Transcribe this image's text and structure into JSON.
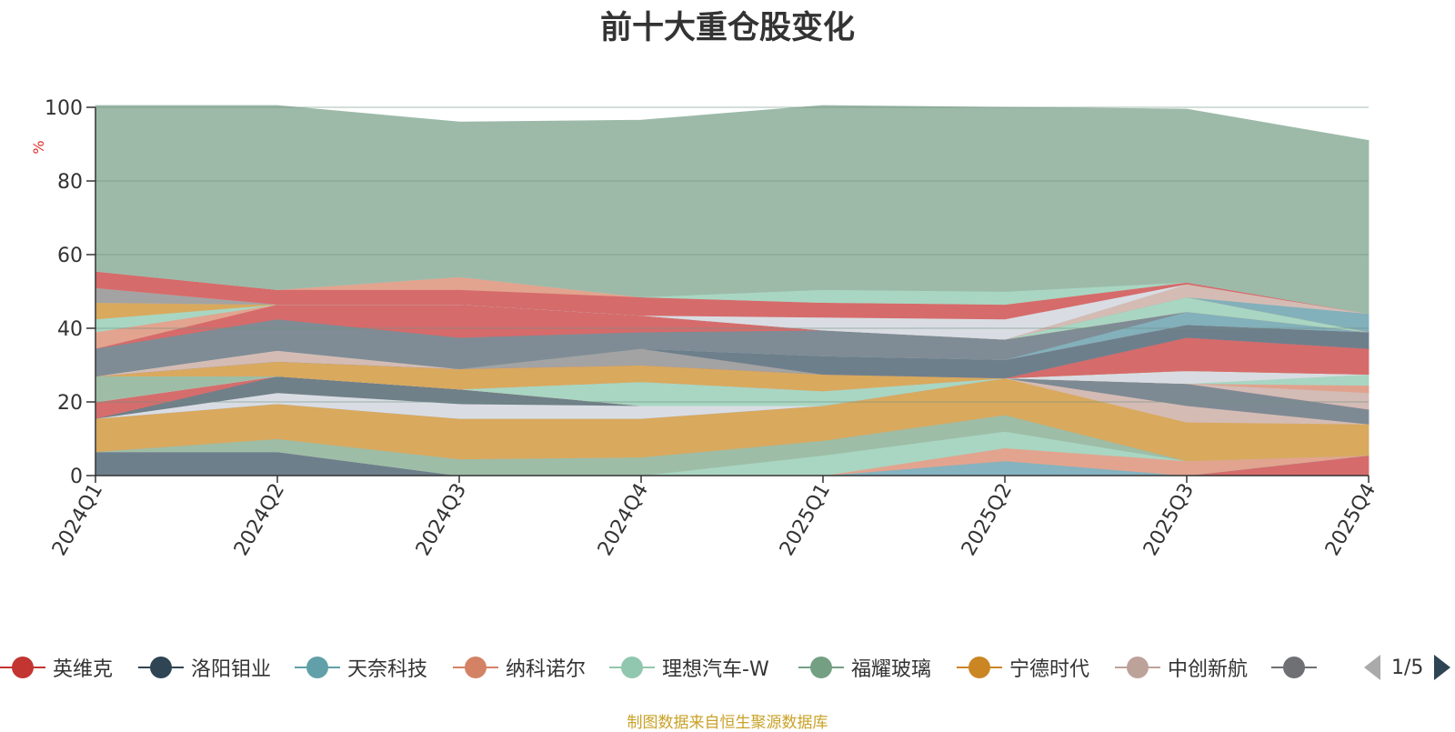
{
  "chart_data": {
    "type": "area",
    "stacked": true,
    "title": "前十大重仓股变化",
    "ylabel": "%",
    "ylim": [
      0,
      100
    ],
    "yticks": [
      0,
      20,
      40,
      60,
      80,
      100
    ],
    "categories": [
      "2024Q1",
      "2024Q2",
      "2024Q3",
      "2024Q4",
      "2025Q1",
      "2025Q2",
      "2025Q3",
      "2025Q4"
    ],
    "grid": true,
    "legend_position": "bottom",
    "series": [
      {
        "name": "英维克",
        "color": "#d66b6b",
        "values": [
          0,
          0,
          0,
          0,
          0,
          0,
          0,
          5.5
        ]
      },
      {
        "name": "洛阳钼业",
        "color": "#6e7f8c",
        "values": [
          6.5,
          6.5,
          0,
          0,
          0,
          0,
          0,
          0
        ]
      },
      {
        "name": "天奈科技",
        "color": "#85b3bf",
        "values": [
          0,
          0,
          0,
          0,
          0,
          4,
          0,
          0
        ]
      },
      {
        "name": "纳科诺尔",
        "color": "#e2a48f",
        "values": [
          0,
          0,
          0,
          0,
          0,
          3.5,
          4,
          0
        ]
      },
      {
        "name": "理想汽车-W",
        "color": "#a8d6c2",
        "values": [
          0,
          0,
          0,
          0,
          5.5,
          4.5,
          0,
          0
        ]
      },
      {
        "name": "福耀玻璃",
        "color": "#9ebda6",
        "values": [
          0,
          3.5,
          4.5,
          5,
          4,
          4.5,
          0,
          0
        ]
      },
      {
        "name": "宁德时代",
        "color": "#d9a95e",
        "values": [
          9,
          9.5,
          11,
          10.5,
          9.5,
          10,
          10.5,
          8.5
        ]
      },
      {
        "name": "中创新航",
        "color": "#d4bcb4",
        "values": [
          0,
          0,
          0,
          0,
          0,
          0,
          4.5,
          0
        ]
      },
      {
        "name": "",
        "color": "#7e8a93",
        "values": [
          0,
          0,
          0,
          0,
          0,
          0,
          6,
          4
        ]
      },
      {
        "name": "",
        "color": "#d9dde3",
        "values": [
          0,
          3,
          4,
          3.5,
          0,
          0,
          0,
          0
        ]
      },
      {
        "name": "",
        "color": "#6f8088",
        "values": [
          0,
          4.5,
          4,
          0,
          0,
          0,
          0,
          0
        ]
      },
      {
        "name": "",
        "color": "#d56d6d",
        "values": [
          4.5,
          0,
          0,
          0,
          0,
          0,
          0,
          0
        ]
      },
      {
        "name": "",
        "color": "#d3bbb6",
        "values": [
          0,
          0,
          0,
          0,
          0,
          0,
          0,
          4.5
        ]
      },
      {
        "name": "",
        "color": "#e1a28d",
        "values": [
          0,
          0,
          0,
          0,
          0,
          0,
          0,
          2
        ]
      },
      {
        "name": "",
        "color": "#a8d6c2",
        "values": [
          0,
          0,
          0,
          6.5,
          4,
          0,
          0,
          3
        ]
      },
      {
        "name": "",
        "color": "#d8dce2",
        "values": [
          0,
          0,
          0,
          0,
          0,
          0,
          3.5,
          0
        ]
      },
      {
        "name": "",
        "color": "#9ebda6",
        "values": [
          7,
          0,
          0,
          0,
          0,
          0,
          0,
          0
        ]
      },
      {
        "name": "",
        "color": "#e2a18b",
        "values": [
          0,
          0,
          0,
          0,
          0,
          0,
          0,
          0
        ]
      },
      {
        "name": "",
        "color": "#d9a95e",
        "values": [
          0,
          4,
          5.5,
          4.5,
          4.5,
          0,
          0,
          0
        ]
      },
      {
        "name": "",
        "color": "#d66b6b",
        "values": [
          0,
          0,
          0,
          0,
          0,
          0,
          9,
          7
        ]
      },
      {
        "name": "",
        "color": "#a3a3a3",
        "values": [
          0,
          0,
          0,
          4.5,
          0,
          0,
          0,
          0
        ]
      },
      {
        "name": "",
        "color": "#6e7f8c",
        "values": [
          0,
          0,
          0,
          0,
          5,
          5,
          3.5,
          4.5
        ]
      },
      {
        "name": "",
        "color": "#d4bcb4",
        "values": [
          0,
          3,
          0,
          0,
          0,
          0,
          0,
          0
        ]
      },
      {
        "name": "",
        "color": "#82b0bb",
        "values": [
          0,
          0,
          0,
          0,
          0,
          0,
          3.5,
          0
        ]
      },
      {
        "name": "",
        "color": "#7f8c95",
        "values": [
          7.5,
          8.5,
          8.5,
          4.5,
          7,
          5.5,
          0,
          0
        ]
      },
      {
        "name": "",
        "color": "#d66b6b",
        "values": [
          0,
          4,
          9,
          4.5,
          0,
          0,
          0,
          0
        ]
      },
      {
        "name": "",
        "color": "#e2a48f",
        "values": [
          4.5,
          0,
          0,
          0,
          0,
          0,
          0,
          0
        ]
      },
      {
        "name": "",
        "color": "#a8d6c2",
        "values": [
          3.5,
          0,
          0,
          0,
          0,
          0,
          4,
          0
        ]
      },
      {
        "name": "",
        "color": "#d9a95e",
        "values": [
          4.5,
          0,
          0,
          0,
          0,
          0,
          0,
          0
        ]
      },
      {
        "name": "",
        "color": "#82b0bb",
        "values": [
          0,
          0,
          0,
          0,
          0,
          0,
          0,
          5
        ]
      },
      {
        "name": "",
        "color": "#d4bcb4",
        "values": [
          0,
          0,
          0,
          0,
          0,
          0,
          3.5,
          0
        ]
      },
      {
        "name": "",
        "color": "#a3a3a3",
        "values": [
          4,
          0,
          0,
          0,
          0,
          0,
          0,
          0
        ]
      },
      {
        "name": "",
        "color": "#d9dde3",
        "values": [
          0,
          0,
          0,
          0,
          3.5,
          5.5,
          0,
          0
        ]
      },
      {
        "name": "",
        "color": "#d66b6b",
        "values": [
          4.5,
          4,
          4,
          5,
          4,
          4,
          0.5,
          0
        ]
      },
      {
        "name": "",
        "color": "#e2a48f",
        "values": [
          0,
          0,
          3.5,
          0,
          0,
          0,
          0,
          0
        ]
      },
      {
        "name": "",
        "color": "#a8d6c2",
        "values": [
          0,
          0,
          0,
          0,
          3.5,
          3.5,
          0,
          0
        ]
      },
      {
        "name": "",
        "color": "#9dbaa9",
        "values": [
          45,
          50,
          42,
          48,
          50,
          50,
          47,
          47
        ]
      }
    ]
  },
  "legend": {
    "items": [
      {
        "label": "英维克",
        "color": "#c23531"
      },
      {
        "label": "洛阳钼业",
        "color": "#2f4554"
      },
      {
        "label": "天奈科技",
        "color": "#61a0a8"
      },
      {
        "label": "纳科诺尔",
        "color": "#d48265"
      },
      {
        "label": "理想汽车-W",
        "color": "#91c7ae"
      },
      {
        "label": "福耀玻璃",
        "color": "#749f83"
      },
      {
        "label": "宁德时代",
        "color": "#ca8622"
      },
      {
        "label": "中创新航",
        "color": "#bda29a"
      },
      {
        "label": "",
        "color": "#6e7074"
      }
    ],
    "page_text": "1/5"
  },
  "source_note": "制图数据来自恒生聚源数据库"
}
